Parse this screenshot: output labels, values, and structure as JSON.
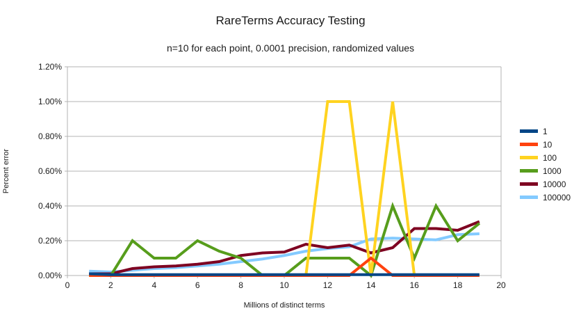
{
  "chart_data": {
    "type": "line",
    "title": "RareTerms Accuracy Testing",
    "subtitle": "n=10 for each point, 0.0001 precision, randomized values",
    "xlabel": "Millions of distinct terms",
    "ylabel": "Percent error",
    "xlim": [
      0,
      20
    ],
    "ylim": [
      0,
      1.2
    ],
    "x_tick_labels": [
      "0",
      "2",
      "4",
      "6",
      "8",
      "10",
      "12",
      "14",
      "16",
      "18",
      "20"
    ],
    "y_tick_labels": [
      "0.00%",
      "0.20%",
      "0.40%",
      "0.60%",
      "0.80%",
      "1.00%",
      "1.20%"
    ],
    "y_tick_values": [
      0,
      0.2,
      0.4,
      0.6,
      0.8,
      1.0,
      1.2
    ],
    "grid": "horizontal",
    "grid_color": "#b3b3b3",
    "legend_position": "right",
    "x": [
      1,
      2,
      3,
      4,
      5,
      6,
      7,
      8,
      9,
      10,
      11,
      12,
      13,
      14,
      15,
      16,
      17,
      18,
      19
    ],
    "series": [
      {
        "name": "1",
        "color": "#004586",
        "values": [
          0.01,
          0.005,
          0.005,
          0.005,
          0.005,
          0.005,
          0.005,
          0.005,
          0.005,
          0.005,
          0.005,
          0.005,
          0.005,
          0.005,
          0.005,
          0.005,
          0.005,
          0.005,
          0.005
        ]
      },
      {
        "name": "10",
        "color": "#FF420E",
        "values": [
          0,
          0,
          0,
          0,
          0,
          0,
          0,
          0,
          0,
          0,
          0,
          0,
          0,
          0.1,
          0,
          0,
          0,
          0,
          0
        ]
      },
      {
        "name": "100",
        "color": "#FFD320",
        "values": [
          0,
          0,
          0,
          0,
          0,
          0,
          0,
          0,
          0,
          0,
          0,
          1.0,
          1.0,
          0,
          1.0,
          0,
          0,
          0,
          0
        ]
      },
      {
        "name": "1000",
        "color": "#579D1C",
        "values": [
          0,
          0,
          0.2,
          0.1,
          0.1,
          0.2,
          0.14,
          0.1,
          0,
          0,
          0.1,
          0.1,
          0.1,
          0,
          0.4,
          0.1,
          0.4,
          0.2,
          0.3
        ]
      },
      {
        "name": "10000",
        "color": "#7E0021",
        "values": [
          0.01,
          0.01,
          0.04,
          0.05,
          0.055,
          0.065,
          0.08,
          0.115,
          0.13,
          0.135,
          0.18,
          0.16,
          0.175,
          0.13,
          0.16,
          0.27,
          0.27,
          0.26,
          0.31
        ]
      },
      {
        "name": "100000",
        "color": "#83CAFF",
        "values": [
          0.025,
          0.02,
          0.03,
          0.04,
          0.045,
          0.055,
          0.065,
          0.08,
          0.095,
          0.115,
          0.14,
          0.155,
          0.165,
          0.21,
          0.215,
          0.21,
          0.205,
          0.235,
          0.24
        ]
      }
    ]
  }
}
